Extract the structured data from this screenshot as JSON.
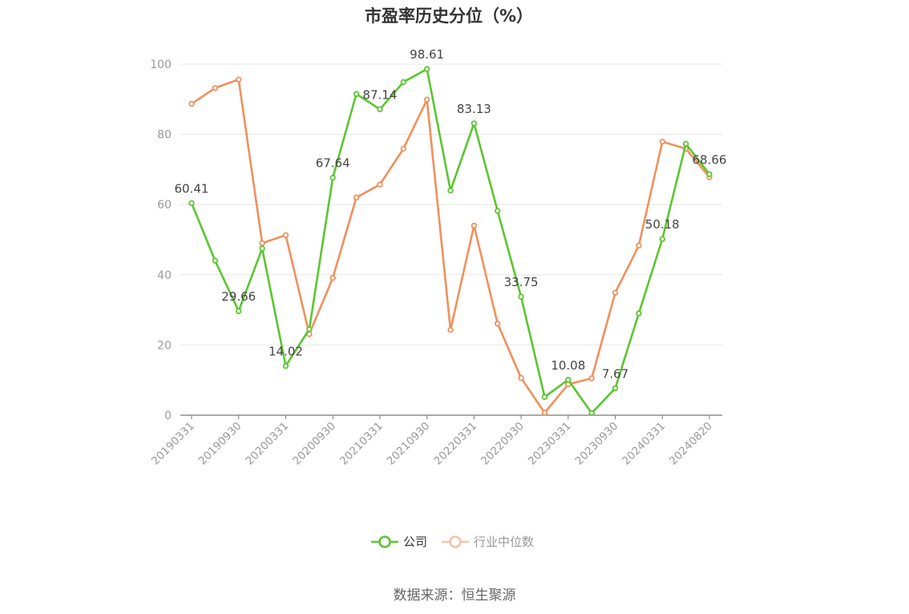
{
  "chart_data": {
    "type": "line",
    "title": "市盈率历史分位（%）",
    "ylim": [
      0,
      100
    ],
    "yticks": [
      0,
      20,
      40,
      60,
      80,
      100
    ],
    "grid": true,
    "legend_position": "bottom-center",
    "x": [
      "20190331",
      "20190630",
      "20190930",
      "20191231",
      "20200331",
      "20200630",
      "20200930",
      "20201231",
      "20210331",
      "20210630",
      "20210930",
      "20211231",
      "20220331",
      "20220630",
      "20220930",
      "20221231",
      "20230331",
      "20230630",
      "20230930",
      "20231231",
      "20240331",
      "20240630",
      "20240820"
    ],
    "x_tick_labels": [
      "20190331",
      "20190930",
      "20200331",
      "20200930",
      "20210331",
      "20210930",
      "20220331",
      "20220930",
      "20230331",
      "20230930",
      "20240331",
      "20240820"
    ],
    "series": [
      {
        "name": "公司",
        "color": "#5ac62f",
        "values": [
          60.41,
          44.0,
          29.66,
          47.5,
          14.02,
          24.5,
          67.64,
          91.5,
          87.14,
          94.9,
          98.61,
          64.0,
          83.13,
          58.2,
          33.75,
          5.2,
          10.08,
          0.6,
          7.67,
          29.0,
          50.18,
          77.3,
          68.66
        ]
      },
      {
        "name": "行业中位数",
        "color": "#f0905c",
        "values": [
          88.7,
          93.2,
          95.6,
          49.0,
          51.3,
          23.1,
          39.1,
          62.0,
          65.7,
          75.9,
          89.9,
          24.3,
          54.0,
          26.1,
          10.6,
          0.7,
          8.8,
          10.5,
          34.9,
          48.3,
          77.9,
          75.9,
          67.8
        ]
      }
    ],
    "data_labels": [
      {
        "index": 0,
        "text": "60.41"
      },
      {
        "index": 2,
        "text": "29.66"
      },
      {
        "index": 4,
        "text": "14.02"
      },
      {
        "index": 6,
        "text": "67.64"
      },
      {
        "index": 8,
        "text": "87.14"
      },
      {
        "index": 10,
        "text": "98.61"
      },
      {
        "index": 12,
        "text": "83.13"
      },
      {
        "index": 14,
        "text": "33.75"
      },
      {
        "index": 16,
        "text": "10.08"
      },
      {
        "index": 18,
        "text": "7.67"
      },
      {
        "index": 20,
        "text": "50.18"
      },
      {
        "index": 22,
        "text": "68.66"
      }
    ]
  },
  "source": "数据来源：恒生聚源"
}
